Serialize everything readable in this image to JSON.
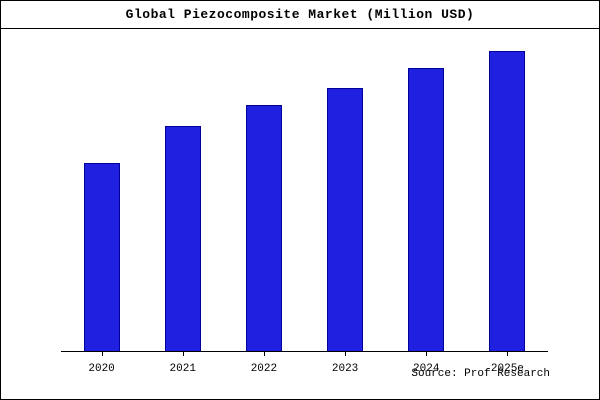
{
  "footer": {
    "source": "Source: Prof Research"
  },
  "chart_data": {
    "type": "bar",
    "title": "Global Piezocomposite Market (Million USD)",
    "categories": [
      "2020",
      "2021",
      "2022",
      "2023",
      "2024",
      "2025e"
    ],
    "values": [
      188,
      225,
      246,
      263,
      283,
      300
    ],
    "xlabel": "",
    "ylabel": "",
    "ylim": [
      0,
      310
    ],
    "grid": false,
    "legend": "none",
    "y_axis_ticks_visible": false,
    "bar_color": "#2020e0",
    "bar_edge_color": "#000099",
    "axis_color": "#000000"
  }
}
